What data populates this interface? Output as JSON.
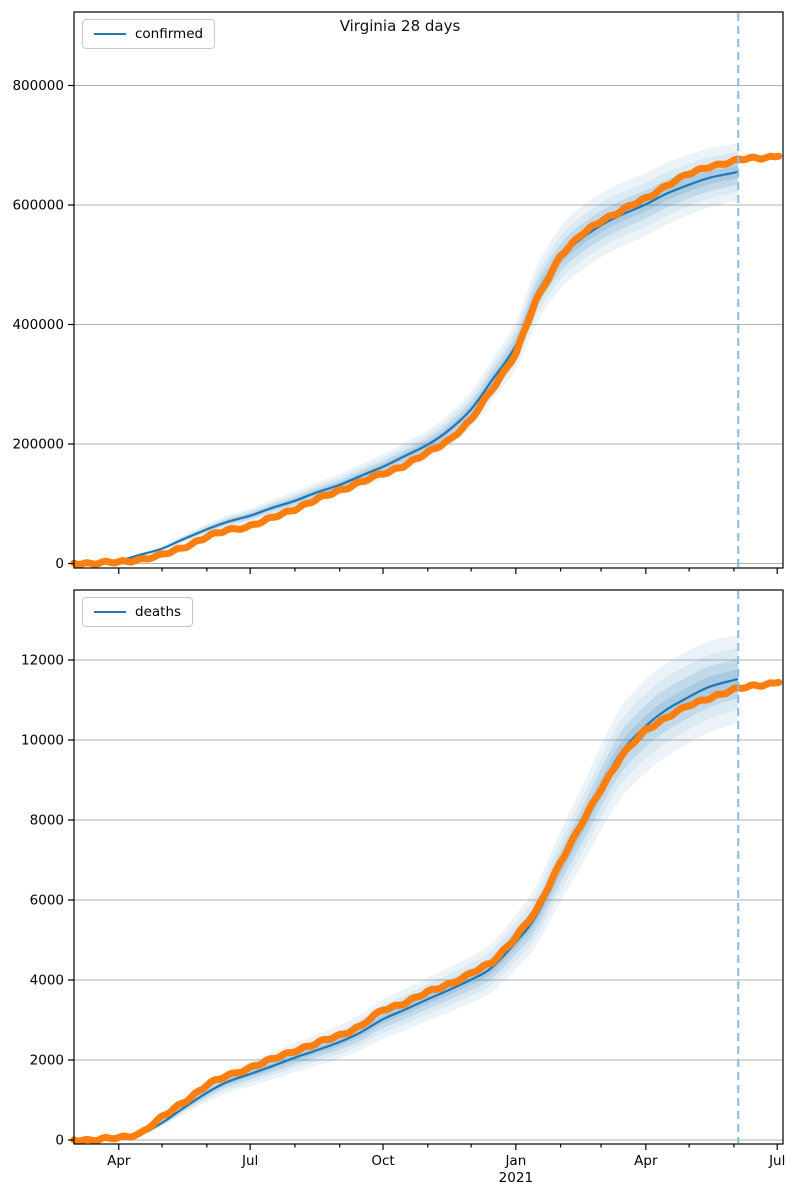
{
  "figure_title": "Virginia 28 days",
  "chart_data": [
    {
      "type": "line",
      "name": "confirmed",
      "title": "Virginia 28 days",
      "legend_label": "confirmed",
      "legend_position": "upper left",
      "grid": "horizontal",
      "x_range": [
        "2020-03-01",
        "2021-07-05"
      ],
      "ylim": [
        0,
        923000
      ],
      "yticks": [
        0,
        200000,
        400000,
        600000,
        800000
      ],
      "ytick_labels": [
        "0",
        "200000",
        "400000",
        "600000",
        "800000"
      ],
      "xtick_labels": [
        "Apr",
        "Jul",
        "Oct",
        "Jan",
        "Apr",
        "Jul"
      ],
      "forecast_cutoff": "2021-06-04",
      "series_dates": [
        "2020-03-01",
        "2020-03-15",
        "2020-04-01",
        "2020-04-15",
        "2020-05-01",
        "2020-05-15",
        "2020-06-01",
        "2020-06-15",
        "2020-07-01",
        "2020-07-15",
        "2020-08-01",
        "2020-08-15",
        "2020-09-01",
        "2020-09-15",
        "2020-10-01",
        "2020-10-15",
        "2020-11-01",
        "2020-11-15",
        "2020-12-01",
        "2020-12-15",
        "2021-01-01",
        "2021-01-15",
        "2021-02-01",
        "2021-02-15",
        "2021-03-01",
        "2021-03-15",
        "2021-04-01",
        "2021-04-15",
        "2021-05-01",
        "2021-05-15",
        "2021-06-01",
        "2021-06-04",
        "2021-06-15",
        "2021-07-02"
      ],
      "actual": [
        600,
        900,
        1700,
        6900,
        13500,
        26200,
        44600,
        55300,
        63200,
        74500,
        91800,
        105700,
        122500,
        136000,
        149600,
        164100,
        184700,
        205700,
        240000,
        289500,
        351700,
        439300,
        516500,
        548900,
        574400,
        590600,
        610900,
        632700,
        651800,
        665100,
        672500,
        675100,
        678900,
        681500
      ],
      "model": [
        600,
        1500,
        5000,
        14000,
        25000,
        40000,
        57000,
        69500,
        80000,
        92000,
        105000,
        118000,
        131500,
        146000,
        162000,
        178500,
        199000,
        222000,
        258000,
        305000,
        365000,
        448000,
        512000,
        543000,
        566000,
        583500,
        601000,
        618500,
        634000,
        645500,
        654000,
        656000,
        null,
        null
      ],
      "ci": {
        "frac_start": 0.18,
        "frac_end": 0.072,
        "levels": [
          1.0,
          0.7,
          0.45,
          0.22
        ],
        "alphas": [
          0.09,
          0.08,
          0.13,
          0.15
        ]
      },
      "colors": {
        "actual": "#ff7f0e",
        "model": "#1f77b4",
        "band_rgb": "31,119,180",
        "cutoff": "#8abbdb",
        "grid": "#b2b2b2",
        "spine": "#000000"
      }
    },
    {
      "type": "line",
      "name": "deaths",
      "title": "",
      "legend_label": "deaths",
      "legend_position": "upper left",
      "grid": "horizontal",
      "x_range": [
        "2020-03-01",
        "2021-07-05"
      ],
      "ylim": [
        0,
        13750
      ],
      "yticks": [
        0,
        2000,
        4000,
        6000,
        8000,
        10000,
        12000
      ],
      "ytick_labels": [
        "0",
        "2000",
        "4000",
        "6000",
        "8000",
        "10000",
        "12000"
      ],
      "xtick_labels": [
        "Apr",
        "Jul",
        "Oct",
        "Jan",
        "Apr",
        "Jul"
      ],
      "year_label": "2021",
      "forecast_cutoff": "2021-06-04",
      "series_dates": [
        "2020-03-01",
        "2020-03-15",
        "2020-04-01",
        "2020-04-15",
        "2020-05-01",
        "2020-05-15",
        "2020-06-01",
        "2020-06-15",
        "2020-07-01",
        "2020-07-15",
        "2020-08-01",
        "2020-08-15",
        "2020-09-01",
        "2020-09-15",
        "2020-10-01",
        "2020-10-15",
        "2020-11-01",
        "2020-11-15",
        "2020-12-01",
        "2020-12-15",
        "2021-01-01",
        "2021-01-15",
        "2021-02-01",
        "2021-02-15",
        "2021-03-01",
        "2021-03-15",
        "2021-04-01",
        "2021-04-15",
        "2021-05-01",
        "2021-05-15",
        "2021-06-01",
        "2021-06-04",
        "2021-06-15",
        "2021-07-02"
      ],
      "actual": [
        5,
        12,
        46,
        154,
        560,
        928,
        1375,
        1602,
        1816,
        1992,
        2244,
        2396,
        2622,
        2839,
        3250,
        3422,
        3688,
        3896,
        4160,
        4420,
        5081,
        5706,
        6966,
        7862,
        8783,
        9596,
        10252,
        10566,
        10855,
        11060,
        11252,
        11275,
        11363,
        11440
      ],
      "model": [
        3,
        6,
        25,
        120,
        430,
        780,
        1180,
        1450,
        1650,
        1830,
        2060,
        2230,
        2450,
        2680,
        3020,
        3240,
        3520,
        3740,
        4010,
        4300,
        4950,
        5600,
        6850,
        7800,
        8800,
        9700,
        10350,
        10750,
        11080,
        11330,
        11500,
        11520,
        null,
        null
      ],
      "ci": {
        "frac_start": 0.22,
        "frac_end": 0.095,
        "levels": [
          1.0,
          0.7,
          0.45,
          0.22
        ],
        "alphas": [
          0.09,
          0.08,
          0.13,
          0.15
        ]
      },
      "colors": {
        "actual": "#ff7f0e",
        "model": "#1f77b4",
        "band_rgb": "31,119,180",
        "cutoff": "#8abbdb",
        "grid": "#b2b2b2",
        "spine": "#000000"
      }
    }
  ]
}
